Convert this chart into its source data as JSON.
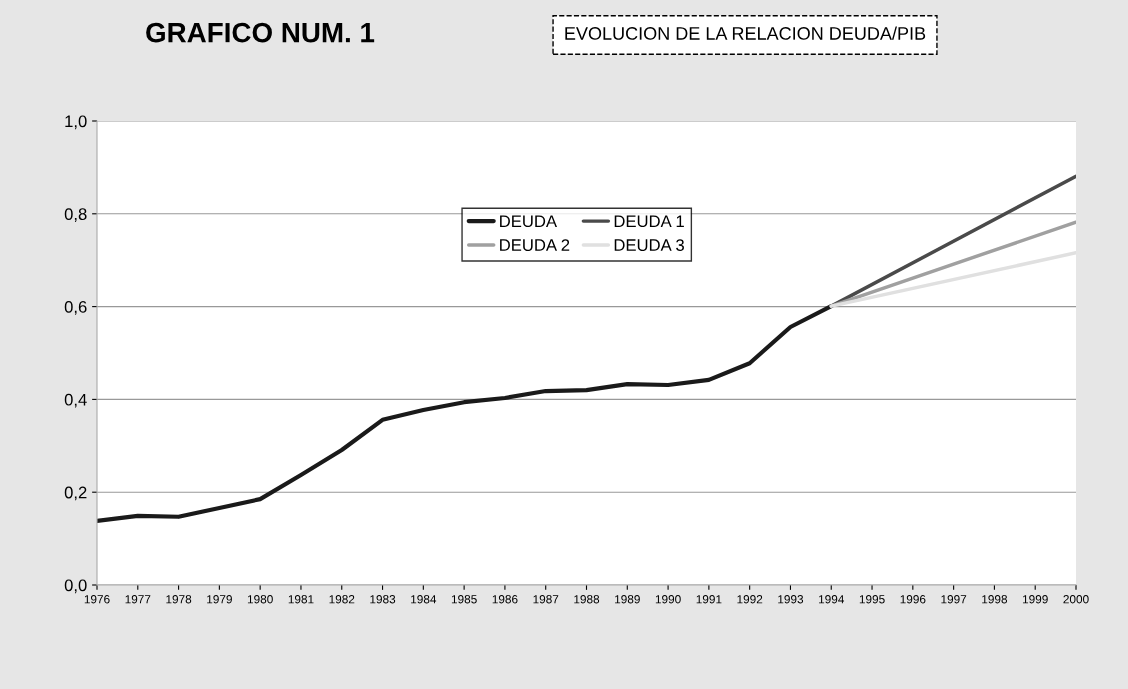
{
  "chart_data": {
    "type": "line",
    "title": "GRAFICO NUM. 1",
    "subtitle": "EVOLUCION DE LA RELACION DEUDA/PIB",
    "xlim": [
      1976,
      2000
    ],
    "xticks": [
      1976,
      1977,
      1978,
      1979,
      1980,
      1981,
      1982,
      1983,
      1984,
      1985,
      1986,
      1987,
      1988,
      1989,
      1990,
      1991,
      1992,
      1993,
      1994,
      1995,
      1996,
      1997,
      1998,
      1999,
      2000
    ],
    "ylim": [
      0,
      1
    ],
    "yticks": [
      {
        "value": 0,
        "label": "0,0"
      },
      {
        "value": 0.2,
        "label": "0,2"
      },
      {
        "value": 0.4,
        "label": "0,4"
      },
      {
        "value": 0.6,
        "label": "0,6"
      },
      {
        "value": 0.8,
        "label": "0,8"
      },
      {
        "value": 1,
        "label": "1,0"
      }
    ],
    "grid": "y",
    "legend": "top",
    "line_style": "solid",
    "marker": "none",
    "series": [
      {
        "name": "DEUDA",
        "color": "#1a1a1a",
        "x": [
          1976,
          1977,
          1978,
          1979,
          1980,
          1981,
          1982,
          1983,
          1984,
          1985,
          1986,
          1987,
          1988,
          1989,
          1990,
          1991,
          1992,
          1993,
          1994
        ],
        "values": [
          0.138,
          0.149,
          0.147,
          0.166,
          0.185,
          0.237,
          0.291,
          0.356,
          0.377,
          0.394,
          0.403,
          0.418,
          0.42,
          0.433,
          0.431,
          0.442,
          0.478,
          0.556,
          0.601
        ]
      },
      {
        "name": "DEUDA 1",
        "color": "#4a4a4a",
        "x": [
          1994,
          2000
        ],
        "values": [
          0.601,
          0.881
        ]
      },
      {
        "name": "DEUDA 2",
        "color": "#a0a0a0",
        "x": [
          1994,
          2000
        ],
        "values": [
          0.601,
          0.782
        ]
      },
      {
        "name": "DEUDA 3",
        "color": "#e0e0e0",
        "x": [
          1994,
          2000
        ],
        "values": [
          0.601,
          0.716
        ]
      }
    ]
  }
}
